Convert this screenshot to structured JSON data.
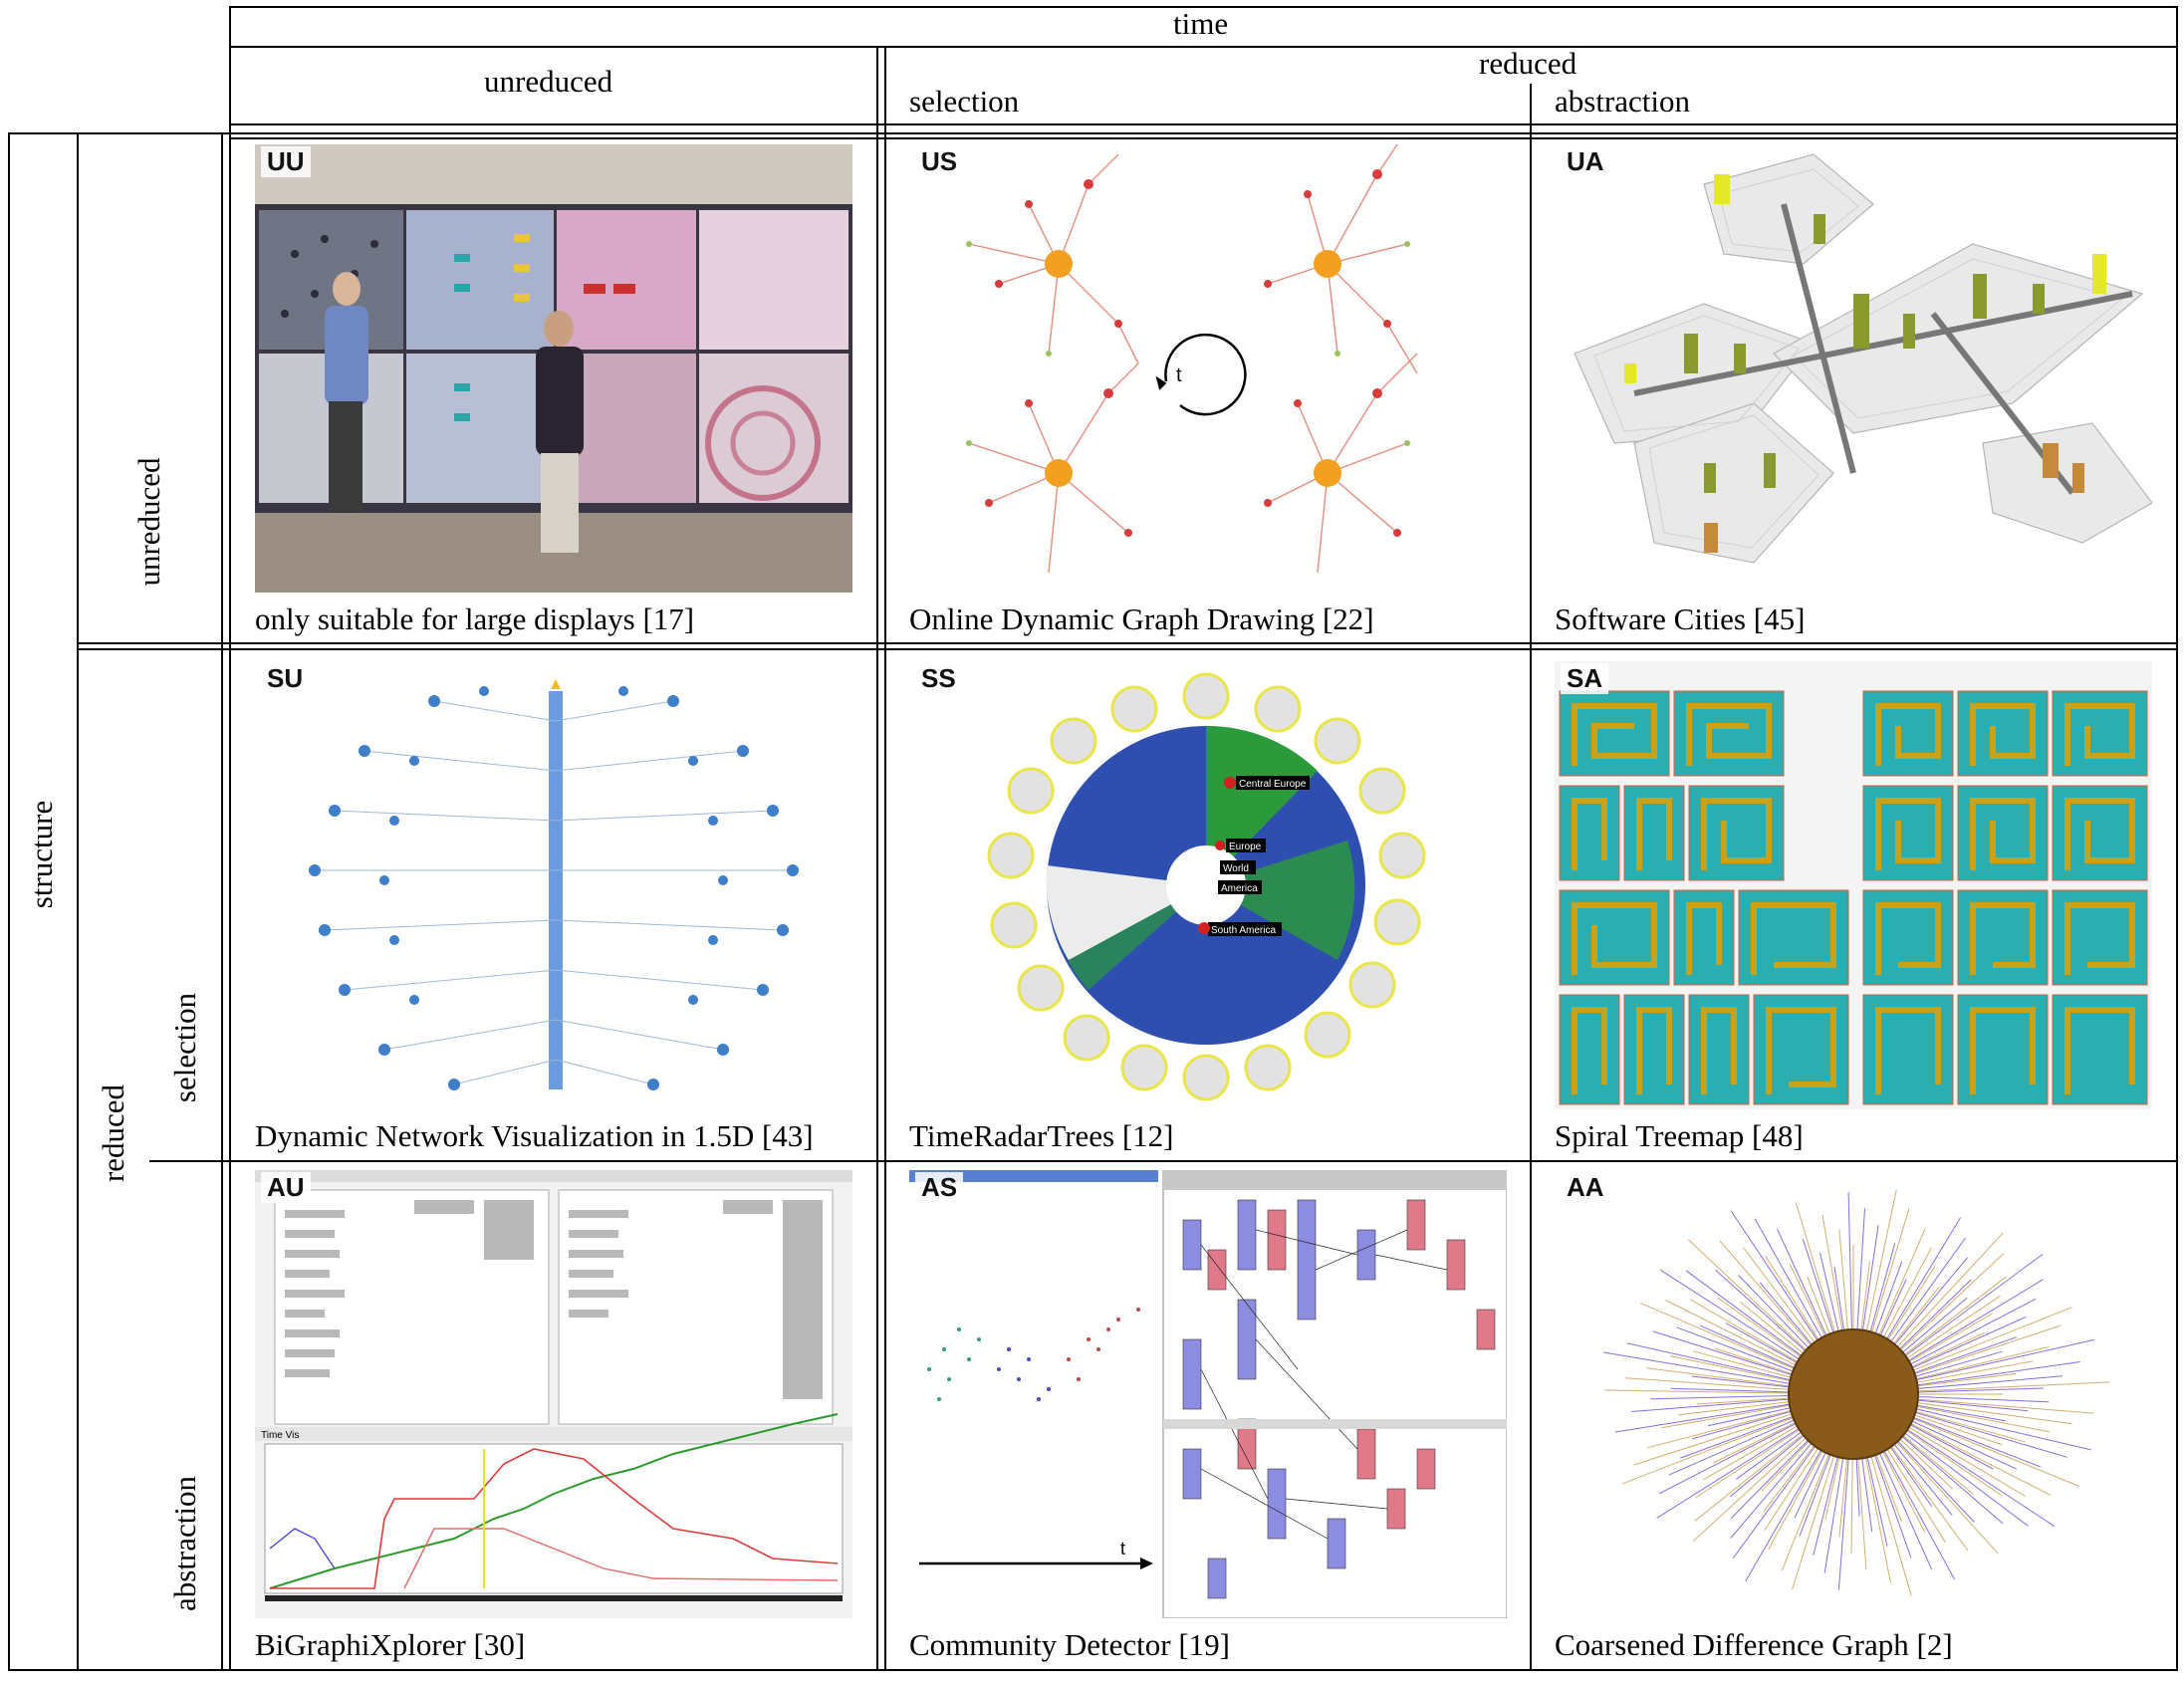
{
  "header": {
    "time": "time",
    "unreduced": "unreduced",
    "reduced": "reduced",
    "selection": "selection",
    "abstraction": "abstraction"
  },
  "rows": {
    "structure": "structure",
    "unreduced": "unreduced",
    "reduced": "reduced",
    "selection": "selection",
    "abstraction": "abstraction"
  },
  "panels": {
    "UU": {
      "tag": "UU",
      "caption": "only suitable for large displays [17]"
    },
    "US": {
      "tag": "US",
      "caption": "Online Dynamic Graph Drawing [22]",
      "t_label": "t"
    },
    "UA": {
      "tag": "UA",
      "caption": "Software Cities [45]"
    },
    "SU": {
      "tag": "SU",
      "caption": "Dynamic Network Visualization in 1.5D [43]"
    },
    "SS": {
      "tag": "SS",
      "caption": "TimeRadarTrees [12]",
      "labels": [
        "Central Europe",
        "Europe",
        "World",
        "America",
        "South America"
      ]
    },
    "SA": {
      "tag": "SA",
      "caption": "Spiral Treemap [48]"
    },
    "AU": {
      "tag": "AU",
      "caption": "BiGraphiXplorer [30]",
      "window_title": "Time Vis"
    },
    "AS": {
      "tag": "AS",
      "caption": "Community Detector [19]",
      "t_label": "t"
    },
    "AA": {
      "tag": "AA",
      "caption": "Coarsened Difference Graph [2]"
    }
  }
}
